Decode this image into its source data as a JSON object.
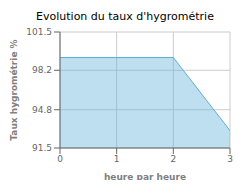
{
  "chart_data": {
    "type": "area",
    "title": "Evolution du taux d'hygrométrie",
    "xlabel": "heure par heure",
    "ylabel": "Taux hygrométrie %",
    "x": [
      0,
      2,
      3
    ],
    "values": [
      99.3,
      99.3,
      93.0
    ],
    "color": "#5bafd6",
    "xlim": [
      0,
      3
    ],
    "ylim": [
      91.5,
      101.5
    ],
    "xticks": [
      0,
      1,
      2,
      3
    ],
    "yticks": [
      91.5,
      94.8,
      98.2,
      101.5
    ],
    "grid": true
  }
}
